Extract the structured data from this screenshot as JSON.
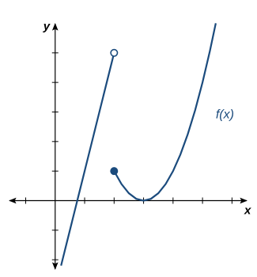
{
  "chart_data": {
    "type": "line",
    "x_label": "x",
    "y_label": "y",
    "annotation": {
      "text": "f(x)",
      "x": 5.45,
      "y": 2.9
    },
    "xlim": [
      -1.55,
      6.5
    ],
    "ylim": [
      -2.45,
      6.2
    ],
    "xticks": [
      -1,
      1,
      2,
      3,
      4,
      5,
      6
    ],
    "yticks": [
      -2,
      -1,
      1,
      2,
      3,
      4,
      5
    ],
    "series": [
      {
        "color": "#1b4b7d",
        "x": [
          0.2,
          2
        ],
        "values": [
          -2.2,
          5
        ],
        "start_marker": "none",
        "end_marker": "open"
      },
      {
        "color": "#1b4b7d",
        "x": [
          2,
          2.25,
          2.5,
          2.75,
          3,
          3.25,
          3.5,
          3.75,
          4,
          4.25,
          4.5,
          4.75,
          5,
          5.25,
          5.45
        ],
        "values": [
          1,
          0.5625,
          0.25,
          0.0625,
          0,
          0.0625,
          0.25,
          0.5625,
          1,
          1.5625,
          2.25,
          3.0625,
          4,
          5.0625,
          6.0025
        ],
        "start_marker": "closed",
        "end_marker": "none"
      }
    ]
  }
}
